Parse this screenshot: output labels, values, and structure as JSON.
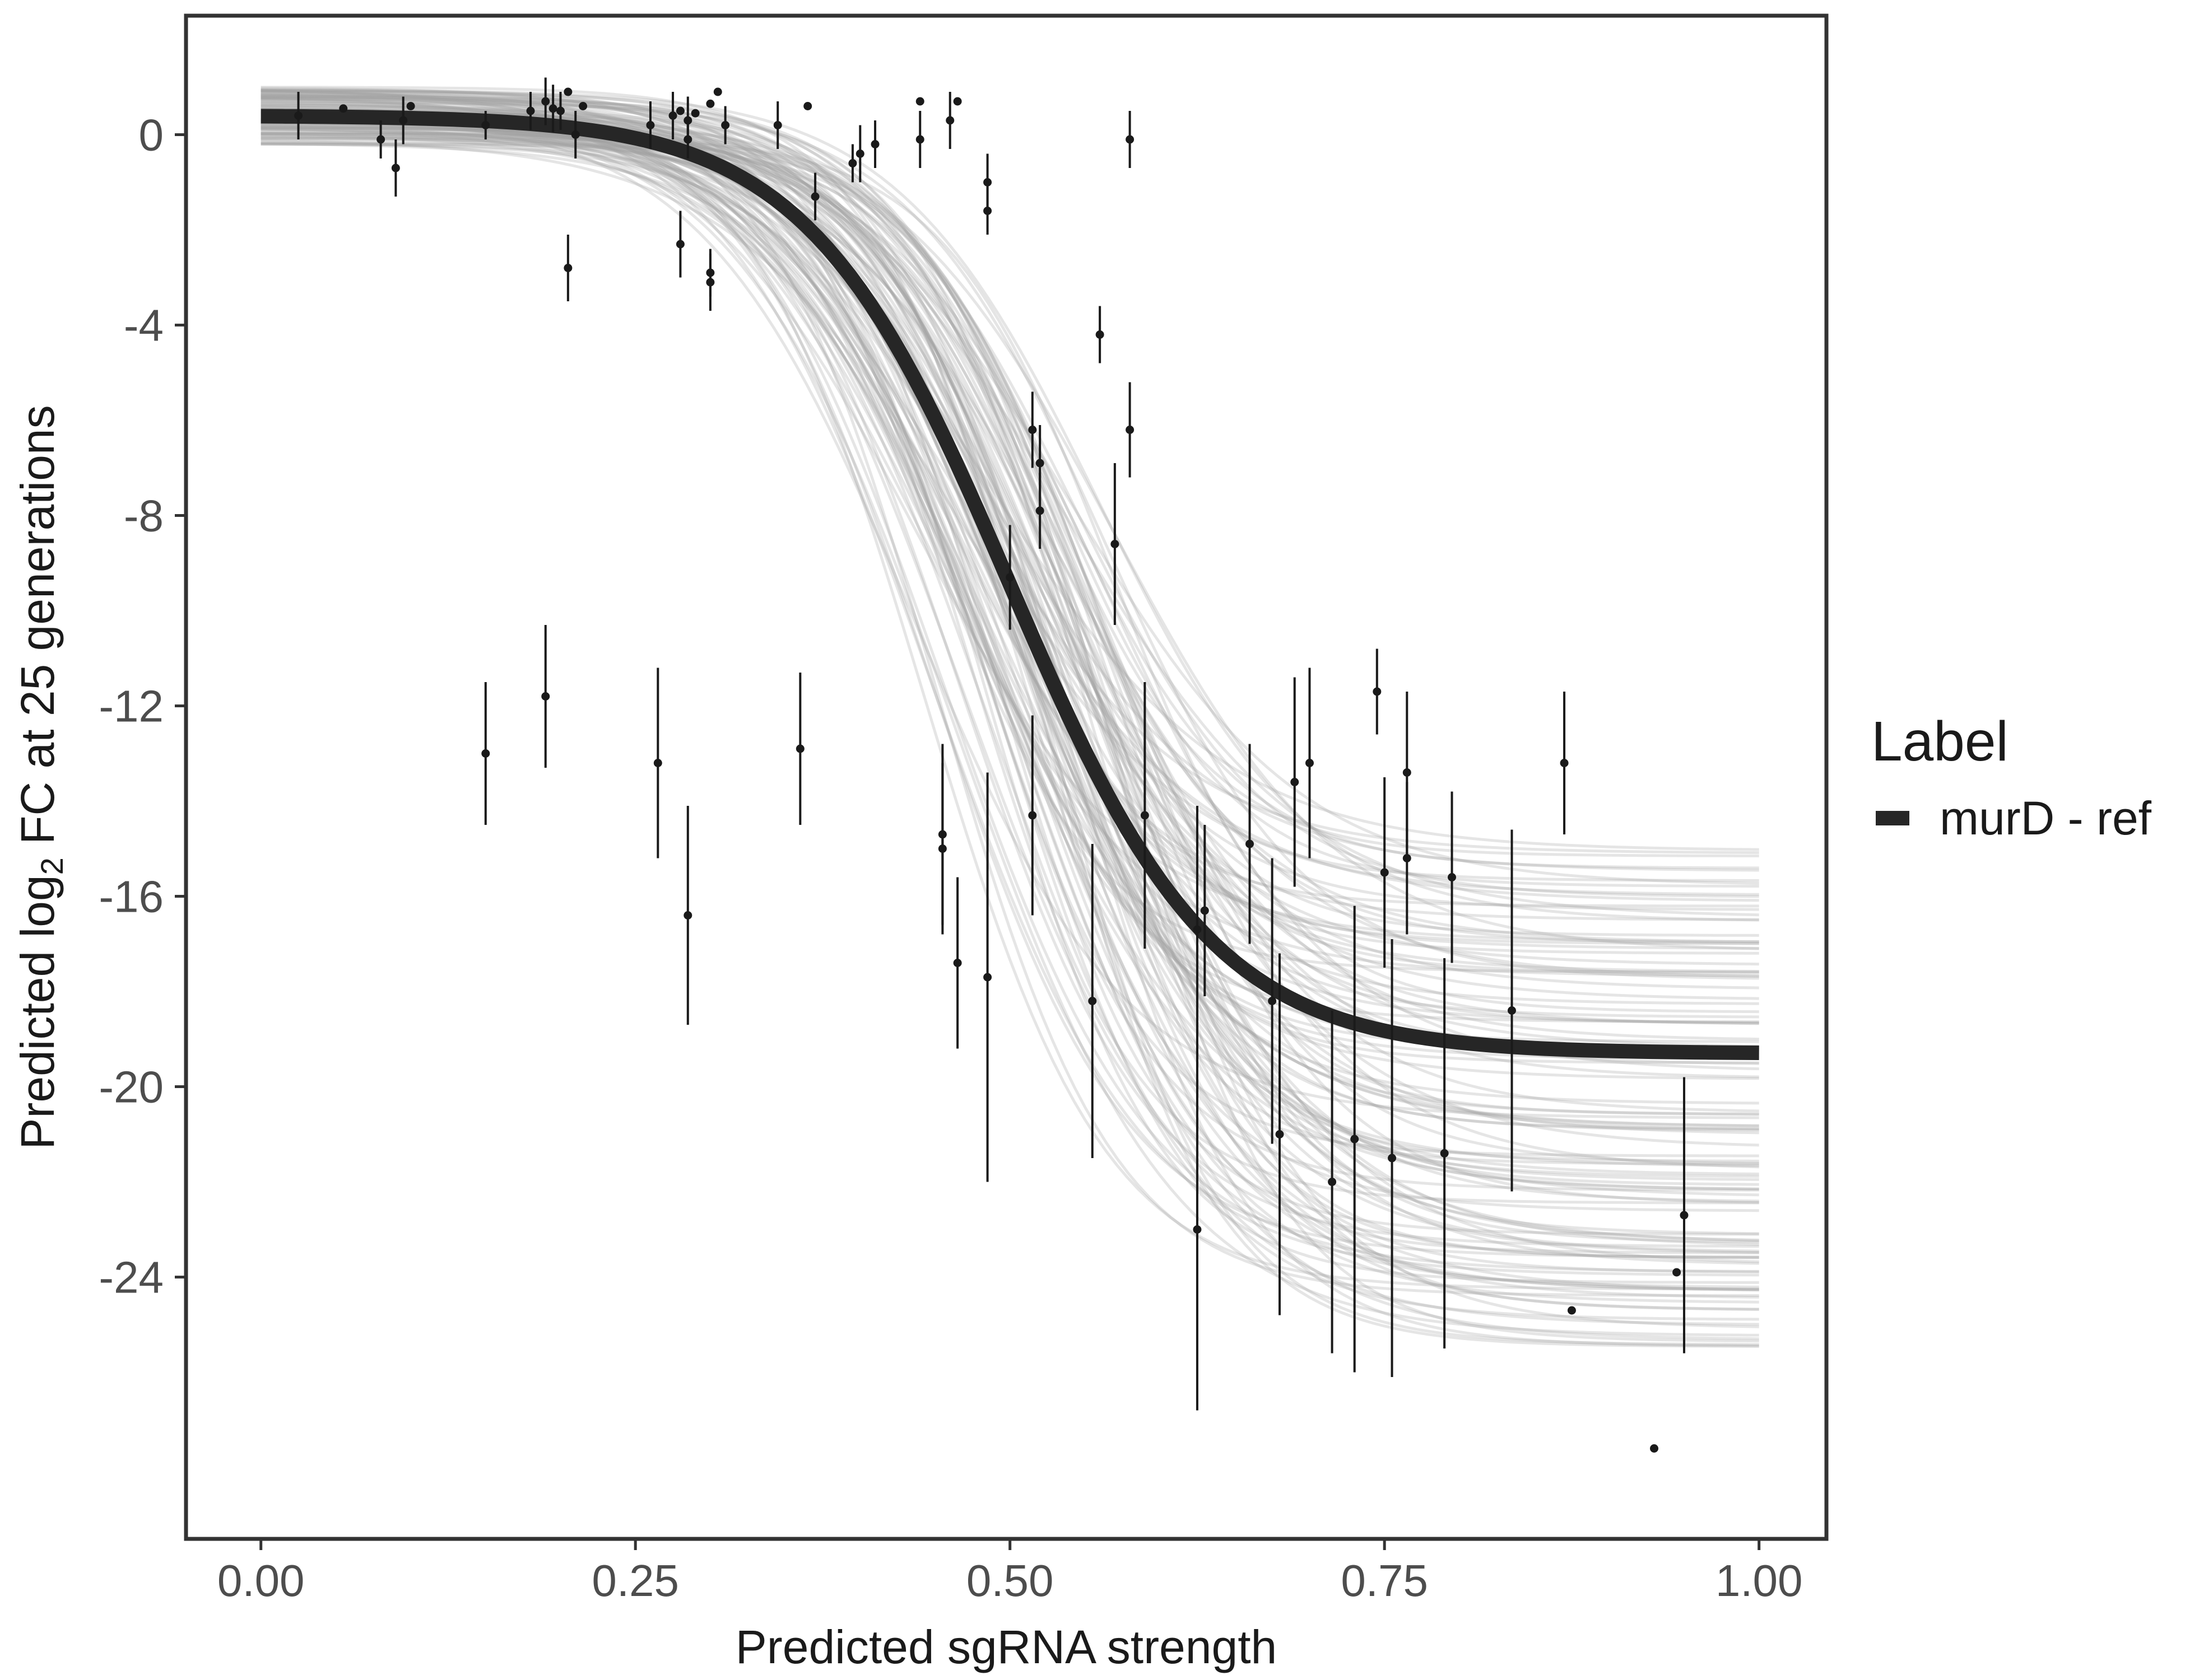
{
  "chart_data": {
    "type": "scatter",
    "xlabel": "Predicted sgRNA strength",
    "ylabel_parts": [
      "Predicted  log",
      "2",
      " FC at 25 generations"
    ],
    "xlim": [
      -0.1,
      2.09
    ],
    "ylim": [
      -29.5,
      2.5
    ],
    "x_ticks": [
      0.0,
      0.5,
      1.0,
      1.5,
      2.0
    ],
    "x_tick_labels": [
      "0.00",
      "0.25",
      "0.50",
      "0.75",
      "1.00"
    ],
    "y_ticks": [
      0,
      -4,
      -8,
      -12,
      -16,
      -20,
      -24
    ],
    "y_tick_labels": [
      "0",
      "-4",
      "-8",
      "-12",
      "-16",
      "-20",
      "-24"
    ],
    "grid": false,
    "legend": {
      "title": "Label",
      "position": "right",
      "entries": [
        {
          "label": "murD - ref",
          "color": "#262626"
        }
      ]
    },
    "fit": {
      "name": "murD - ref",
      "model": "logistic",
      "upper": 0.4,
      "lower": -19.3,
      "midpoint": 1.0,
      "scale": 0.135,
      "color": "#262626"
    },
    "posterior_band": {
      "n_draws": 120,
      "color": "#a3a3a3",
      "midpoint_range": [
        0.86,
        1.14
      ],
      "scale_range": [
        0.11,
        0.16
      ],
      "lower_range": [
        -25.5,
        -14.6
      ]
    },
    "points": [
      {
        "x": 0.05,
        "y": 0.4,
        "err": 0.5
      },
      {
        "x": 0.11,
        "y": 0.55,
        "err": 0
      },
      {
        "x": 0.16,
        "y": -0.1,
        "err": 0.4
      },
      {
        "x": 0.18,
        "y": -0.7,
        "err": 0.6
      },
      {
        "x": 0.19,
        "y": 0.3,
        "err": 0.5
      },
      {
        "x": 0.2,
        "y": 0.6,
        "err": 0
      },
      {
        "x": 0.3,
        "y": 0.2,
        "err": 0.3
      },
      {
        "x": 0.36,
        "y": 0.5,
        "err": 0.4
      },
      {
        "x": 0.38,
        "y": 0.7,
        "err": 0.5
      },
      {
        "x": 0.39,
        "y": 0.55,
        "err": 0.5
      },
      {
        "x": 0.4,
        "y": 0.5,
        "err": 0.4
      },
      {
        "x": 0.41,
        "y": 0.9,
        "err": 0
      },
      {
        "x": 0.42,
        "y": 0.0,
        "err": 0.5
      },
      {
        "x": 0.43,
        "y": 0.6,
        "err": 0
      },
      {
        "x": 0.41,
        "y": -2.8,
        "err": 0.7
      },
      {
        "x": 0.52,
        "y": 0.2,
        "err": 0.5
      },
      {
        "x": 0.55,
        "y": 0.4,
        "err": 0.5
      },
      {
        "x": 0.56,
        "y": 0.5,
        "err": 0
      },
      {
        "x": 0.57,
        "y": 0.3,
        "err": 0.5
      },
      {
        "x": 0.57,
        "y": -0.1,
        "err": 0.4
      },
      {
        "x": 0.58,
        "y": 0.45,
        "err": 0
      },
      {
        "x": 0.56,
        "y": -2.3,
        "err": 0.7
      },
      {
        "x": 0.6,
        "y": 0.65,
        "err": 0
      },
      {
        "x": 0.61,
        "y": 0.9,
        "err": 0
      },
      {
        "x": 0.62,
        "y": 0.2,
        "err": 0.4
      },
      {
        "x": 0.6,
        "y": -2.9,
        "err": 0.5
      },
      {
        "x": 0.6,
        "y": -3.1,
        "err": 0.6
      },
      {
        "x": 0.69,
        "y": 0.2,
        "err": 0.5
      },
      {
        "x": 0.73,
        "y": 0.6,
        "err": 0
      },
      {
        "x": 0.74,
        "y": -1.3,
        "err": 0.5
      },
      {
        "x": 0.79,
        "y": -0.6,
        "err": 0.4
      },
      {
        "x": 0.8,
        "y": -0.4,
        "err": 0.6
      },
      {
        "x": 0.82,
        "y": -0.2,
        "err": 0.5
      },
      {
        "x": 0.88,
        "y": -0.1,
        "err": 0.6
      },
      {
        "x": 0.88,
        "y": 0.7,
        "err": 0
      },
      {
        "x": 0.92,
        "y": 0.3,
        "err": 0.6
      },
      {
        "x": 0.93,
        "y": 0.7,
        "err": 0
      },
      {
        "x": 0.97,
        "y": -1.0,
        "err": 0.6
      },
      {
        "x": 0.97,
        "y": -1.6,
        "err": 0.5
      },
      {
        "x": 1.16,
        "y": -0.1,
        "err": 0.6
      },
      {
        "x": 1.12,
        "y": -4.2,
        "err": 0.6
      },
      {
        "x": 1.03,
        "y": -6.2,
        "err": 0.8
      },
      {
        "x": 1.04,
        "y": -6.9,
        "err": 0.8
      },
      {
        "x": 1.04,
        "y": -7.9,
        "err": 0.8
      },
      {
        "x": 1.0,
        "y": -9.3,
        "err": 1.1
      },
      {
        "x": 1.16,
        "y": -6.2,
        "err": 1.0
      },
      {
        "x": 1.14,
        "y": -8.6,
        "err": 1.7
      },
      {
        "x": 0.3,
        "y": -13.0,
        "err": 1.5
      },
      {
        "x": 0.38,
        "y": -11.8,
        "err": 1.5
      },
      {
        "x": 0.53,
        "y": -13.2,
        "err": 2.0
      },
      {
        "x": 0.57,
        "y": -16.4,
        "err": 2.3
      },
      {
        "x": 0.72,
        "y": -12.9,
        "err": 1.6
      },
      {
        "x": 0.91,
        "y": -14.7,
        "err": 1.9
      },
      {
        "x": 0.91,
        "y": -15.0,
        "err": 1.8
      },
      {
        "x": 0.93,
        "y": -17.4,
        "err": 1.8
      },
      {
        "x": 0.97,
        "y": -17.7,
        "err": 4.3
      },
      {
        "x": 1.03,
        "y": -14.3,
        "err": 2.1
      },
      {
        "x": 1.11,
        "y": -18.2,
        "err": 3.3
      },
      {
        "x": 1.18,
        "y": -14.3,
        "err": 2.8
      },
      {
        "x": 1.25,
        "y": -16.7,
        "err": 2.6
      },
      {
        "x": 1.25,
        "y": -23.0,
        "err": 3.8
      },
      {
        "x": 1.26,
        "y": -16.3,
        "err": 1.8
      },
      {
        "x": 1.32,
        "y": -14.9,
        "err": 2.1
      },
      {
        "x": 1.35,
        "y": -18.2,
        "err": 3.0
      },
      {
        "x": 1.36,
        "y": -21.0,
        "err": 3.8
      },
      {
        "x": 1.38,
        "y": -13.6,
        "err": 2.2
      },
      {
        "x": 1.4,
        "y": -13.2,
        "err": 2.0
      },
      {
        "x": 1.43,
        "y": -22.0,
        "err": 3.6
      },
      {
        "x": 1.46,
        "y": -21.1,
        "err": 4.9
      },
      {
        "x": 1.49,
        "y": -11.7,
        "err": 0.9
      },
      {
        "x": 1.5,
        "y": -15.5,
        "err": 2.0
      },
      {
        "x": 1.51,
        "y": -21.5,
        "err": 4.6
      },
      {
        "x": 1.53,
        "y": -15.2,
        "err": 1.6
      },
      {
        "x": 1.53,
        "y": -13.4,
        "err": 1.7
      },
      {
        "x": 1.58,
        "y": -21.4,
        "err": 4.1
      },
      {
        "x": 1.59,
        "y": -15.6,
        "err": 1.8
      },
      {
        "x": 1.67,
        "y": -18.4,
        "err": 3.8
      },
      {
        "x": 1.74,
        "y": -13.2,
        "err": 1.5
      },
      {
        "x": 1.75,
        "y": -24.7,
        "err": 0
      },
      {
        "x": 1.86,
        "y": -27.6,
        "err": 0
      },
      {
        "x": 1.89,
        "y": -23.9,
        "err": 0
      },
      {
        "x": 1.9,
        "y": -22.7,
        "err": 2.9
      }
    ]
  }
}
